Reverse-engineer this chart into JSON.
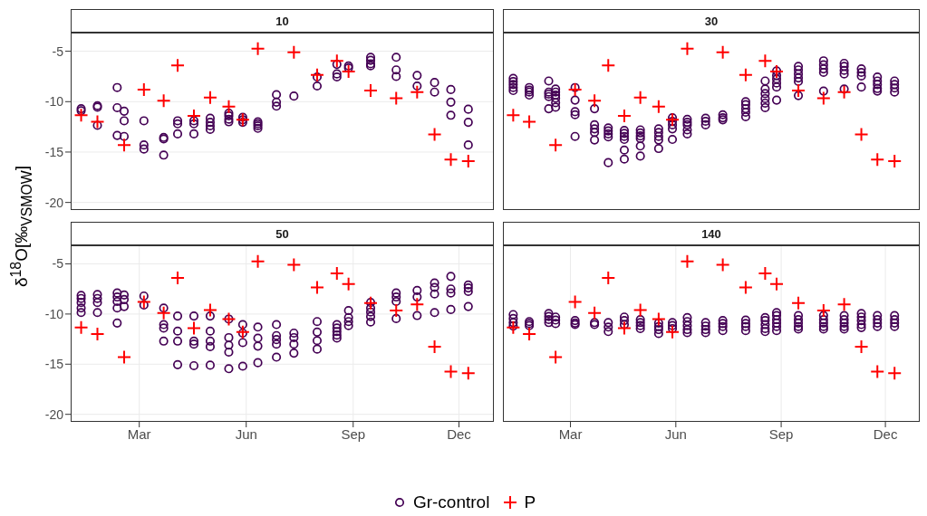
{
  "chart_data": [
    {
      "type": "scatter",
      "title": "10",
      "ylabel": "δ$^{18}$O[‰$_{VSMOW}$]",
      "legend": "bottom",
      "grid": true,
      "tick_labels": "y",
      "xlim": [
        "--01-01",
        "--12-31"
      ],
      "xticks": [
        {
          "value": "--03-01",
          "label": "Mar"
        },
        {
          "value": "--06-01",
          "label": "Jun"
        },
        {
          "value": "--09-01",
          "label": "Sep"
        },
        {
          "value": "--12-01",
          "label": "Dec"
        }
      ],
      "ylim": [
        -20.75,
        -3.15
      ],
      "yticks": [
        -20,
        -15,
        -10,
        -5
      ],
      "series": [
        {
          "name": "Gr-control",
          "color": "#440154",
          "marker": "circle",
          "x": [
            "--01-10",
            "--01-10",
            "--01-24",
            "--01-24",
            "--01-24",
            "--02-10",
            "--02-10",
            "--02-10",
            "--02-16",
            "--02-16",
            "--02-16",
            "--03-05",
            "--03-05",
            "--03-05",
            "--03-22",
            "--03-22",
            "--03-22",
            "--04-03",
            "--04-03",
            "--04-03",
            "--04-17",
            "--04-17",
            "--04-17",
            "--05-01",
            "--05-01",
            "--05-01",
            "--05-01",
            "--05-17",
            "--05-17",
            "--05-17",
            "--05-17",
            "--05-29",
            "--05-29",
            "--05-29",
            "--06-11",
            "--06-11",
            "--06-11",
            "--06-11",
            "--06-27",
            "--06-27",
            "--06-27",
            "--07-12",
            "--08-01",
            "--08-01",
            "--08-18",
            "--08-18",
            "--08-18",
            "--08-28",
            "--08-28",
            "--09-16",
            "--09-16",
            "--09-16",
            "--09-16",
            "--10-08",
            "--10-08",
            "--10-08",
            "--10-26",
            "--10-26",
            "--11-10",
            "--11-10",
            "--11-24",
            "--11-24",
            "--11-24",
            "--12-09",
            "--12-09",
            "--12-09"
          ],
          "values": [
            -10.7,
            -10.9,
            -10.4,
            -10.55,
            -12.35,
            -8.6,
            -10.6,
            -13.35,
            -10.95,
            -11.9,
            -13.45,
            -11.9,
            -14.3,
            -14.7,
            -13.55,
            -13.7,
            -15.3,
            -11.9,
            -12.2,
            -13.2,
            -11.9,
            -12.2,
            -13.2,
            -11.65,
            -12.05,
            -12.4,
            -12.75,
            -11.15,
            -11.4,
            -11.75,
            -12.0,
            -11.55,
            -11.8,
            -12.05,
            -12.0,
            -12.2,
            -12.4,
            -12.65,
            -9.3,
            -10.05,
            -10.45,
            -9.45,
            -7.55,
            -8.45,
            -6.3,
            -7.25,
            -7.55,
            -6.45,
            -6.65,
            -5.6,
            -5.9,
            -6.25,
            -6.45,
            -5.6,
            -6.85,
            -7.5,
            -7.4,
            -8.45,
            -8.1,
            -9.05,
            -8.8,
            -10.05,
            -11.35,
            -10.75,
            -12.05,
            -14.3
          ]
        },
        {
          "name": "P",
          "color": "#ff0000",
          "marker": "cross",
          "x": [
            "--01-10",
            "--01-24",
            "--02-16",
            "--03-05",
            "--03-22",
            "--04-03",
            "--04-17",
            "--05-01",
            "--05-17",
            "--05-29",
            "--06-11",
            "--07-12",
            "--08-01",
            "--08-18",
            "--08-28",
            "--09-16",
            "--10-08",
            "--10-26",
            "--11-10",
            "--11-24",
            "--12-09"
          ],
          "values": [
            -11.35,
            -12.0,
            -14.3,
            -8.8,
            -9.9,
            -6.4,
            -11.4,
            -9.6,
            -10.5,
            -11.8,
            -4.75,
            -5.1,
            -7.35,
            -5.95,
            -7.0,
            -8.9,
            -9.65,
            -9.05,
            -13.25,
            -15.75,
            -15.9
          ]
        }
      ]
    },
    {
      "type": "scatter",
      "title": "30",
      "grid": true,
      "tick_labels": false,
      "xlim": [
        "--01-01",
        "--12-31"
      ],
      "xticks": [
        {
          "value": "--03-01",
          "label": "Mar"
        },
        {
          "value": "--06-01",
          "label": "Jun"
        },
        {
          "value": "--09-01",
          "label": "Sep"
        },
        {
          "value": "--12-01",
          "label": "Dec"
        }
      ],
      "ylim": [
        -20.75,
        -3.15
      ],
      "yticks": [
        -20,
        -15,
        -10,
        -5
      ],
      "series": [
        {
          "name": "Gr-control",
          "color": "#440154",
          "marker": "circle",
          "x": [
            "--01-10",
            "--01-10",
            "--01-10",
            "--01-10",
            "--01-10",
            "--01-24",
            "--01-24",
            "--01-24",
            "--01-24",
            "--02-10",
            "--02-10",
            "--02-10",
            "--02-10",
            "--02-10",
            "--02-16",
            "--02-16",
            "--02-16",
            "--02-16",
            "--02-16",
            "--02-16",
            "--03-05",
            "--03-05",
            "--03-05",
            "--03-05",
            "--03-05",
            "--03-22",
            "--03-22",
            "--03-22",
            "--03-22",
            "--03-22",
            "--04-03",
            "--04-03",
            "--04-03",
            "--04-03",
            "--04-03",
            "--04-17",
            "--04-17",
            "--04-17",
            "--04-17",
            "--04-17",
            "--04-17",
            "--05-01",
            "--05-01",
            "--05-01",
            "--05-01",
            "--05-01",
            "--05-01",
            "--05-17",
            "--05-17",
            "--05-17",
            "--05-17",
            "--05-17",
            "--05-29",
            "--05-29",
            "--05-29",
            "--05-29",
            "--05-29",
            "--06-11",
            "--06-11",
            "--06-11",
            "--06-11",
            "--06-11",
            "--06-27",
            "--06-27",
            "--06-27",
            "--07-12",
            "--07-12",
            "--07-12",
            "--08-01",
            "--08-01",
            "--08-01",
            "--08-01",
            "--08-01",
            "--08-18",
            "--08-18",
            "--08-18",
            "--08-18",
            "--08-18",
            "--08-18",
            "--08-28",
            "--08-28",
            "--08-28",
            "--08-28",
            "--08-28",
            "--08-28",
            "--09-16",
            "--09-16",
            "--09-16",
            "--09-16",
            "--09-16",
            "--09-16",
            "--10-08",
            "--10-08",
            "--10-08",
            "--10-08",
            "--10-08",
            "--10-26",
            "--10-26",
            "--10-26",
            "--10-26",
            "--10-26",
            "--11-10",
            "--11-10",
            "--11-10",
            "--11-10",
            "--11-24",
            "--11-24",
            "--11-24",
            "--11-24",
            "--11-24",
            "--12-09",
            "--12-09",
            "--12-09",
            "--12-09"
          ],
          "values": [
            -7.7,
            -8.0,
            -8.3,
            -8.6,
            -8.9,
            -8.6,
            -8.85,
            -9.05,
            -9.35,
            -7.95,
            -9.05,
            -9.25,
            -9.5,
            -10.7,
            -8.75,
            -9.05,
            -9.35,
            -9.65,
            -10.1,
            -10.55,
            -8.6,
            -9.85,
            -11.0,
            -11.3,
            -13.45,
            -10.7,
            -12.3,
            -12.7,
            -13.05,
            -13.8,
            -12.6,
            -12.9,
            -13.2,
            -13.5,
            -16.05,
            -12.85,
            -13.15,
            -13.45,
            -13.75,
            -14.8,
            -15.7,
            -12.8,
            -13.1,
            -13.4,
            -13.65,
            -14.4,
            -15.4,
            -12.7,
            -13.05,
            -13.45,
            -13.8,
            -14.65,
            -11.6,
            -11.95,
            -12.3,
            -12.7,
            -13.75,
            -11.75,
            -12.05,
            -12.3,
            -12.8,
            -13.2,
            -11.65,
            -11.95,
            -12.3,
            -11.3,
            -11.6,
            -11.8,
            -10.0,
            -10.3,
            -10.7,
            -11.05,
            -11.5,
            -7.95,
            -8.75,
            -9.2,
            -9.7,
            -10.15,
            -10.6,
            -6.95,
            -7.4,
            -7.75,
            -8.15,
            -8.55,
            -9.85,
            -6.5,
            -6.85,
            -7.25,
            -7.65,
            -8.0,
            -9.4,
            -5.95,
            -6.35,
            -6.75,
            -7.1,
            -8.95,
            -6.2,
            -6.5,
            -6.9,
            -7.25,
            -8.75,
            -6.75,
            -7.1,
            -7.45,
            -8.55,
            -7.55,
            -7.95,
            -8.3,
            -8.7,
            -8.95,
            -7.95,
            -8.3,
            -8.65,
            -9.05
          ]
        },
        {
          "name": "P",
          "color": "#ff0000",
          "marker": "cross",
          "x": [
            "--01-10",
            "--01-24",
            "--02-16",
            "--03-05",
            "--03-22",
            "--04-03",
            "--04-17",
            "--05-01",
            "--05-17",
            "--05-29",
            "--06-11",
            "--07-12",
            "--08-01",
            "--08-18",
            "--08-28",
            "--09-16",
            "--10-08",
            "--10-26",
            "--11-10",
            "--11-24",
            "--12-09"
          ],
          "values": [
            -11.35,
            -12.0,
            -14.3,
            -8.8,
            -9.9,
            -6.4,
            -11.4,
            -9.6,
            -10.5,
            -11.8,
            -4.75,
            -5.1,
            -7.35,
            -5.95,
            -7.0,
            -8.9,
            -9.65,
            -9.05,
            -13.25,
            -15.75,
            -15.9
          ]
        }
      ]
    },
    {
      "type": "scatter",
      "title": "50",
      "grid": true,
      "xlim": [
        "--01-01",
        "--12-31"
      ],
      "xticks": [
        {
          "value": "--03-01",
          "label": "Mar"
        },
        {
          "value": "--06-01",
          "label": "Jun"
        },
        {
          "value": "--09-01",
          "label": "Sep"
        },
        {
          "value": "--12-01",
          "label": "Dec"
        }
      ],
      "ylim": [
        -20.75,
        -3.15
      ],
      "yticks": [
        -20,
        -15,
        -10,
        -5
      ],
      "series": [
        {
          "name": "Gr-control",
          "color": "#440154",
          "marker": "circle",
          "x": [
            "--01-10",
            "--01-10",
            "--01-10",
            "--01-10",
            "--01-10",
            "--01-24",
            "--01-24",
            "--01-24",
            "--01-24",
            "--02-10",
            "--02-10",
            "--02-10",
            "--02-10",
            "--02-10",
            "--02-16",
            "--02-16",
            "--02-16",
            "--03-05",
            "--03-05",
            "--03-22",
            "--03-22",
            "--03-22",
            "--03-22",
            "--04-03",
            "--04-03",
            "--04-03",
            "--04-03",
            "--04-17",
            "--04-17",
            "--04-17",
            "--04-17",
            "--05-01",
            "--05-01",
            "--05-01",
            "--05-01",
            "--05-01",
            "--05-17",
            "--05-17",
            "--05-17",
            "--05-17",
            "--05-17",
            "--05-29",
            "--05-29",
            "--05-29",
            "--05-29",
            "--06-11",
            "--06-11",
            "--06-11",
            "--06-11",
            "--06-27",
            "--06-27",
            "--06-27",
            "--06-27",
            "--06-27",
            "--07-12",
            "--07-12",
            "--07-12",
            "--07-12",
            "--08-01",
            "--08-01",
            "--08-01",
            "--08-01",
            "--08-18",
            "--08-18",
            "--08-18",
            "--08-18",
            "--08-18",
            "--08-28",
            "--08-28",
            "--08-28",
            "--08-28",
            "--09-16",
            "--09-16",
            "--09-16",
            "--09-16",
            "--09-16",
            "--10-08",
            "--10-08",
            "--10-08",
            "--10-08",
            "--10-26",
            "--10-26",
            "--10-26",
            "--11-10",
            "--11-10",
            "--11-10",
            "--11-10",
            "--11-24",
            "--11-24",
            "--11-24",
            "--11-24",
            "--12-09",
            "--12-09",
            "--12-09",
            "--12-09"
          ],
          "values": [
            -8.15,
            -8.45,
            -8.85,
            -9.4,
            -9.85,
            -8.05,
            -8.45,
            -8.85,
            -9.85,
            -7.9,
            -8.3,
            -8.75,
            -9.4,
            -10.9,
            -8.1,
            -8.55,
            -9.25,
            -8.2,
            -9.1,
            -9.4,
            -11.05,
            -11.4,
            -12.7,
            -10.2,
            -11.7,
            -12.7,
            -15.05,
            -10.2,
            -12.7,
            -13.0,
            -15.15,
            -10.2,
            -11.7,
            -12.7,
            -13.25,
            -15.1,
            -10.5,
            -12.35,
            -13.1,
            -13.8,
            -15.45,
            -11.05,
            -11.9,
            -12.85,
            -15.2,
            -11.3,
            -12.4,
            -13.2,
            -14.85,
            -11.05,
            -12.15,
            -12.55,
            -13.0,
            -14.3,
            -11.9,
            -12.35,
            -13.0,
            -13.9,
            -10.75,
            -11.8,
            -12.65,
            -13.5,
            -11.05,
            -11.4,
            -11.75,
            -12.1,
            -12.4,
            -9.65,
            -10.35,
            -10.75,
            -11.15,
            -8.85,
            -9.4,
            -9.8,
            -10.25,
            -10.8,
            -7.9,
            -8.3,
            -8.75,
            -10.45,
            -7.65,
            -8.3,
            -10.15,
            -6.9,
            -7.35,
            -8.0,
            -9.85,
            -6.25,
            -7.5,
            -7.9,
            -9.55,
            -7.1,
            -7.4,
            -7.75,
            -9.25
          ]
        },
        {
          "name": "P",
          "color": "#ff0000",
          "marker": "cross",
          "x": [
            "--01-10",
            "--01-24",
            "--02-16",
            "--03-05",
            "--03-22",
            "--04-03",
            "--04-17",
            "--05-01",
            "--05-17",
            "--05-29",
            "--06-11",
            "--07-12",
            "--08-01",
            "--08-18",
            "--08-28",
            "--09-16",
            "--10-08",
            "--10-26",
            "--11-10",
            "--11-24",
            "--12-09"
          ],
          "values": [
            -11.35,
            -12.0,
            -14.3,
            -8.8,
            -9.9,
            -6.4,
            -11.4,
            -9.6,
            -10.5,
            -11.8,
            -4.75,
            -5.1,
            -7.35,
            -5.95,
            -7.0,
            -8.9,
            -9.65,
            -9.05,
            -13.25,
            -15.75,
            -15.9
          ]
        }
      ]
    },
    {
      "type": "scatter",
      "title": "140",
      "grid": true,
      "tick_labels": "x",
      "xlim": [
        "--01-01",
        "--12-31"
      ],
      "xticks": [
        {
          "value": "--03-01",
          "label": "Mar"
        },
        {
          "value": "--06-01",
          "label": "Jun"
        },
        {
          "value": "--09-01",
          "label": "Sep"
        },
        {
          "value": "--12-01",
          "label": "Dec"
        }
      ],
      "ylim": [
        -20.75,
        -3.15
      ],
      "yticks": [
        -20,
        -15,
        -10,
        -5
      ],
      "series": [
        {
          "name": "Gr-control",
          "color": "#440154",
          "marker": "circle",
          "x": [
            "--01-10",
            "--01-10",
            "--01-10",
            "--01-10",
            "--01-24",
            "--01-24",
            "--01-24",
            "--02-10",
            "--02-10",
            "--02-10",
            "--02-10",
            "--02-16",
            "--02-16",
            "--02-16",
            "--03-05",
            "--03-05",
            "--03-05",
            "--03-22",
            "--03-22",
            "--04-03",
            "--04-03",
            "--04-03",
            "--04-17",
            "--04-17",
            "--04-17",
            "--05-01",
            "--05-01",
            "--05-01",
            "--05-01",
            "--05-17",
            "--05-17",
            "--05-17",
            "--05-17",
            "--05-29",
            "--05-29",
            "--05-29",
            "--06-11",
            "--06-11",
            "--06-11",
            "--06-11",
            "--06-11",
            "--06-27",
            "--06-27",
            "--06-27",
            "--06-27",
            "--07-12",
            "--07-12",
            "--07-12",
            "--07-12",
            "--08-01",
            "--08-01",
            "--08-01",
            "--08-01",
            "--08-18",
            "--08-18",
            "--08-18",
            "--08-18",
            "--08-18",
            "--08-28",
            "--08-28",
            "--08-28",
            "--08-28",
            "--08-28",
            "--08-28",
            "--09-16",
            "--09-16",
            "--09-16",
            "--09-16",
            "--09-16",
            "--10-08",
            "--10-08",
            "--10-08",
            "--10-08",
            "--10-08",
            "--10-26",
            "--10-26",
            "--10-26",
            "--10-26",
            "--10-26",
            "--11-10",
            "--11-10",
            "--11-10",
            "--11-10",
            "--11-10",
            "--11-24",
            "--11-24",
            "--11-24",
            "--11-24",
            "--12-09",
            "--12-09",
            "--12-09",
            "--12-09"
          ],
          "values": [
            -10.05,
            -10.45,
            -10.85,
            -11.2,
            -10.75,
            -10.95,
            -11.15,
            -9.95,
            -10.25,
            -10.55,
            -10.85,
            -10.3,
            -10.6,
            -10.95,
            -10.65,
            -10.9,
            -11.05,
            -10.85,
            -11.05,
            -10.85,
            -11.3,
            -11.75,
            -10.3,
            -10.65,
            -11.05,
            -10.55,
            -10.85,
            -11.15,
            -11.45,
            -10.9,
            -11.25,
            -11.55,
            -11.95,
            -10.85,
            -11.15,
            -11.45,
            -10.35,
            -10.75,
            -11.15,
            -11.55,
            -11.85,
            -10.85,
            -11.2,
            -11.55,
            -11.85,
            -10.65,
            -10.95,
            -11.25,
            -11.65,
            -10.6,
            -10.95,
            -11.25,
            -11.65,
            -10.35,
            -10.65,
            -11.05,
            -11.45,
            -11.75,
            -9.85,
            -10.15,
            -10.55,
            -10.9,
            -11.25,
            -11.65,
            -10.15,
            -10.55,
            -10.9,
            -11.25,
            -11.5,
            -10.15,
            -10.55,
            -10.9,
            -11.25,
            -11.5,
            -10.15,
            -10.55,
            -10.9,
            -11.25,
            -11.5,
            -9.95,
            -10.3,
            -10.65,
            -11.05,
            -11.35,
            -10.15,
            -10.55,
            -10.9,
            -11.25,
            -10.15,
            -10.55,
            -10.9,
            -11.25
          ]
        },
        {
          "name": "P",
          "color": "#ff0000",
          "marker": "cross",
          "x": [
            "--01-10",
            "--01-24",
            "--02-16",
            "--03-05",
            "--03-22",
            "--04-03",
            "--04-17",
            "--05-01",
            "--05-17",
            "--05-29",
            "--06-11",
            "--07-12",
            "--08-01",
            "--08-18",
            "--08-28",
            "--09-16",
            "--10-08",
            "--10-26",
            "--11-10",
            "--11-24",
            "--12-09"
          ],
          "values": [
            -11.35,
            -12.0,
            -14.3,
            -8.8,
            -9.9,
            -6.4,
            -11.4,
            -9.6,
            -10.5,
            -11.8,
            -4.75,
            -5.1,
            -7.35,
            -5.95,
            -7.0,
            -8.9,
            -9.65,
            -9.05,
            -13.25,
            -15.75,
            -15.9
          ]
        }
      ]
    }
  ]
}
